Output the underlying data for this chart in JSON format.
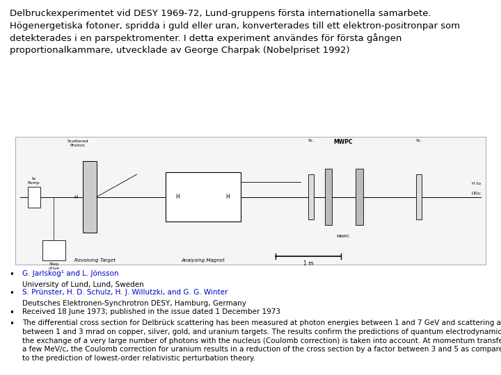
{
  "background_color": "#ffffff",
  "title_text": "Delbruckexperimentet vid DESY 1969-72, Lund-gruppens första internationella samarbete.\nHögenergetiska fotoner, spridda i guld eller uran, konverterades till ett elektron-positronpar som\ndetekterades i en parspektromenter. I detta experiment användes för första gången\nproportionalkammare, utvecklade av George Charpak (Nobelpriset 1992)",
  "title_fontsize": 9.5,
  "bullet_fontsize": 7.5,
  "link_color": "#0000cc",
  "text_color": "#000000",
  "bullet1_line1": "G. Jarlskog¹ and L. Jönsson",
  "bullet1_line2": "University of Lund, Lund, Sweden",
  "bullet2_line1": "S. Prünster, H. D. Schulz, H. J. Willutzki, and G. G. Winter",
  "bullet2_line2": "Deutsches Elektronen-Synchrotron DESY, Hamburg, Germany",
  "bullet3_line1": "Received 18 June 1973; published in the issue dated 1 December 1973",
  "bullet4_line1": "The differential cross section for Delbrück scattering has been measured at photon energies between 1 and 7 GeV and scattering angles\nbetween 1 and 3 mrad on copper, silver, gold, and uranium targets. The results confirm the predictions of quantum electrodynamics, if\nthe exchange of a very large number of photons with the nucleus (Coulomb correction) is taken into account. At momentum transfers of\na few MeV/c, the Coulomb correction for uranium results in a reduction of the cross section by a factor between 3 and 5 as compared\nto the prediction of lowest-order relativistic perturbation theory."
}
